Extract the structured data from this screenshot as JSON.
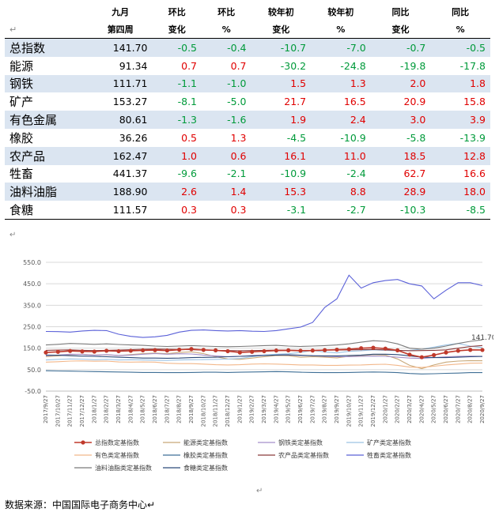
{
  "table": {
    "headers": [
      [
        "",
        "九月",
        "环比",
        "环比",
        "较年初",
        "较年初",
        "同比",
        "同比"
      ],
      [
        "↵",
        "第四周",
        "变化",
        "%",
        "变化",
        "%",
        "变化",
        "%"
      ]
    ],
    "rows": [
      {
        "name": "总指数",
        "value": "141.70",
        "c": [
          "-0.5",
          "-0.4",
          "-10.7",
          "-7.0",
          "-0.7",
          "-0.5"
        ]
      },
      {
        "name": "能源",
        "value": "91.34",
        "c": [
          "0.7",
          "0.7",
          "-30.2",
          "-24.8",
          "-19.8",
          "-17.8"
        ]
      },
      {
        "name": "钢铁",
        "value": "111.71",
        "c": [
          "-1.1",
          "-1.0",
          "1.5",
          "1.3",
          "2.0",
          "1.8"
        ]
      },
      {
        "name": "矿产",
        "value": "153.27",
        "c": [
          "-8.1",
          "-5.0",
          "21.7",
          "16.5",
          "20.9",
          "15.8"
        ]
      },
      {
        "name": "有色金属",
        "value": "80.61",
        "c": [
          "-1.3",
          "-1.6",
          "1.9",
          "2.4",
          "3.0",
          "3.9"
        ]
      },
      {
        "name": "橡胶",
        "value": "36.26",
        "c": [
          "0.5",
          "1.3",
          "-4.5",
          "-10.9",
          "-5.8",
          "-13.9"
        ]
      },
      {
        "name": "农产品",
        "value": "162.47",
        "c": [
          "1.0",
          "0.6",
          "16.1",
          "11.0",
          "18.5",
          "12.8"
        ]
      },
      {
        "name": "牲畜",
        "value": "441.37",
        "c": [
          "-9.6",
          "-2.1",
          "-10.9",
          "-2.4",
          "62.7",
          "16.6"
        ]
      },
      {
        "name": "油料油脂",
        "value": "188.90",
        "c": [
          "2.6",
          "1.4",
          "15.3",
          "8.8",
          "28.9",
          "18.0"
        ]
      },
      {
        "name": "食糖",
        "value": "111.57",
        "c": [
          "0.3",
          "0.3",
          "-3.1",
          "-2.7",
          "-10.3",
          "-8.5"
        ]
      }
    ]
  },
  "marks": {
    "para1": "↵",
    "para2": "↵"
  },
  "source": "数据来源：中国国际电子商务中心↵",
  "chart_data": {
    "type": "line",
    "yticks": [
      "550.0",
      "450.0",
      "350.0",
      "250.0",
      "150.0",
      "50.0",
      "-50.0"
    ],
    "ylim": [
      -50,
      550
    ],
    "xticks": [
      "2017/9/27",
      "2017/10/27",
      "2017/11/27",
      "2017/12/27",
      "2018/1/27",
      "2018/2/27",
      "2018/3/27",
      "2018/4/27",
      "2018/5/27",
      "2018/6/27",
      "2018/7/27",
      "2018/8/27",
      "2018/9/27",
      "2018/10/27",
      "2018/11/27",
      "2018/12/27",
      "2019/1/27",
      "2019/2/27",
      "2019/3/27",
      "2019/4/27",
      "2019/5/27",
      "2019/6/27",
      "2019/7/27",
      "2019/8/27",
      "2019/9/27",
      "2019/10/27",
      "2019/11/27",
      "2019/12/27",
      "2020/1/27",
      "2020/2/27",
      "2020/3/27",
      "2020/4/27",
      "2020/5/27",
      "2020/6/27",
      "2020/7/27",
      "2020/8/27",
      "2020/9/27"
    ],
    "annotation": "141.70",
    "series": [
      {
        "name": "总指数定基指数",
        "color": "#c0392b",
        "values": [
          130,
          133,
          137,
          135,
          134,
          138,
          136,
          138,
          140,
          141,
          139,
          143,
          146,
          142,
          140,
          136,
          130,
          133,
          136,
          139,
          140,
          138,
          139,
          141,
          143,
          145,
          150,
          152,
          148,
          140,
          120,
          108,
          118,
          130,
          138,
          142,
          141.7
        ]
      },
      {
        "name": "能源类定基指数",
        "color": "#c8a878",
        "values": [
          110,
          114,
          120,
          122,
          118,
          119,
          116,
          120,
          125,
          127,
          124,
          130,
          133,
          125,
          110,
          100,
          98,
          104,
          110,
          116,
          115,
          108,
          110,
          108,
          105,
          112,
          115,
          120,
          118,
          100,
          70,
          55,
          72,
          85,
          90,
          92,
          91.3
        ]
      },
      {
        "name": "钢铁类定基指数",
        "color": "#a48fc9",
        "values": [
          115,
          118,
          122,
          121,
          117,
          120,
          116,
          118,
          122,
          125,
          122,
          124,
          123,
          118,
          114,
          110,
          112,
          116,
          118,
          120,
          118,
          116,
          115,
          112,
          110,
          110,
          112,
          113,
          112,
          108,
          104,
          102,
          106,
          110,
          112,
          113,
          111.7
        ]
      },
      {
        "name": "矿产类定基指数",
        "color": "#9cc3e4",
        "values": [
          95,
          98,
          100,
          99,
          96,
          98,
          95,
          96,
          95,
          94,
          93,
          95,
          96,
          97,
          98,
          99,
          102,
          110,
          118,
          122,
          124,
          130,
          140,
          132,
          128,
          135,
          138,
          142,
          140,
          138,
          140,
          145,
          155,
          165,
          172,
          160,
          153.3
        ]
      },
      {
        "name": "有色类定基指数",
        "color": "#f2b78a",
        "values": [
          85,
          87,
          90,
          91,
          89,
          90,
          86,
          85,
          86,
          85,
          80,
          78,
          78,
          76,
          73,
          72,
          73,
          76,
          77,
          76,
          74,
          72,
          72,
          70,
          70,
          71,
          72,
          74,
          75,
          70,
          62,
          60,
          66,
          72,
          76,
          80,
          80.6
        ]
      },
      {
        "name": "橡胶类定基指数",
        "color": "#3f6f96",
        "values": [
          45,
          44,
          43,
          42,
          41,
          40,
          39,
          38,
          37,
          37,
          36,
          36,
          37,
          38,
          38,
          37,
          38,
          39,
          40,
          41,
          40,
          38,
          37,
          36,
          36,
          37,
          38,
          39,
          38,
          36,
          32,
          30,
          31,
          33,
          34,
          36,
          36.3
        ]
      },
      {
        "name": "农产品类定基指数",
        "color": "#8b3a3a",
        "values": [
          140,
          141,
          142,
          140,
          139,
          140,
          141,
          143,
          145,
          146,
          145,
          144,
          143,
          141,
          140,
          139,
          138,
          139,
          140,
          141,
          141,
          140,
          140,
          141,
          141,
          142,
          143,
          144,
          142,
          140,
          138,
          139,
          140,
          142,
          150,
          158,
          162.5
        ]
      },
      {
        "name": "牲畜类定基指数",
        "color": "#5a60d8",
        "values": [
          228,
          227,
          225,
          230,
          233,
          232,
          215,
          205,
          200,
          203,
          210,
          225,
          233,
          235,
          232,
          230,
          232,
          229,
          228,
          232,
          240,
          248,
          270,
          340,
          380,
          490,
          430,
          455,
          465,
          470,
          450,
          440,
          380,
          420,
          455,
          455,
          441.4
        ]
      },
      {
        "name": "油料油脂类定基指数",
        "color": "#7a7a7a",
        "values": [
          165,
          168,
          172,
          170,
          168,
          170,
          167,
          165,
          163,
          160,
          158,
          160,
          162,
          160,
          158,
          157,
          158,
          160,
          162,
          163,
          160,
          158,
          160,
          162,
          165,
          170,
          178,
          185,
          182,
          170,
          150,
          145,
          150,
          160,
          172,
          182,
          188.9
        ]
      },
      {
        "name": "食糖类定基指数",
        "color": "#2c4a7a",
        "values": [
          118,
          117,
          115,
          113,
          112,
          110,
          108,
          106,
          104,
          104,
          103,
          104,
          106,
          107,
          108,
          110,
          112,
          114,
          116,
          118,
          119,
          117,
          115,
          114,
          114,
          116,
          118,
          122,
          122,
          120,
          114,
          108,
          106,
          106,
          108,
          110,
          111.6
        ]
      }
    ]
  }
}
